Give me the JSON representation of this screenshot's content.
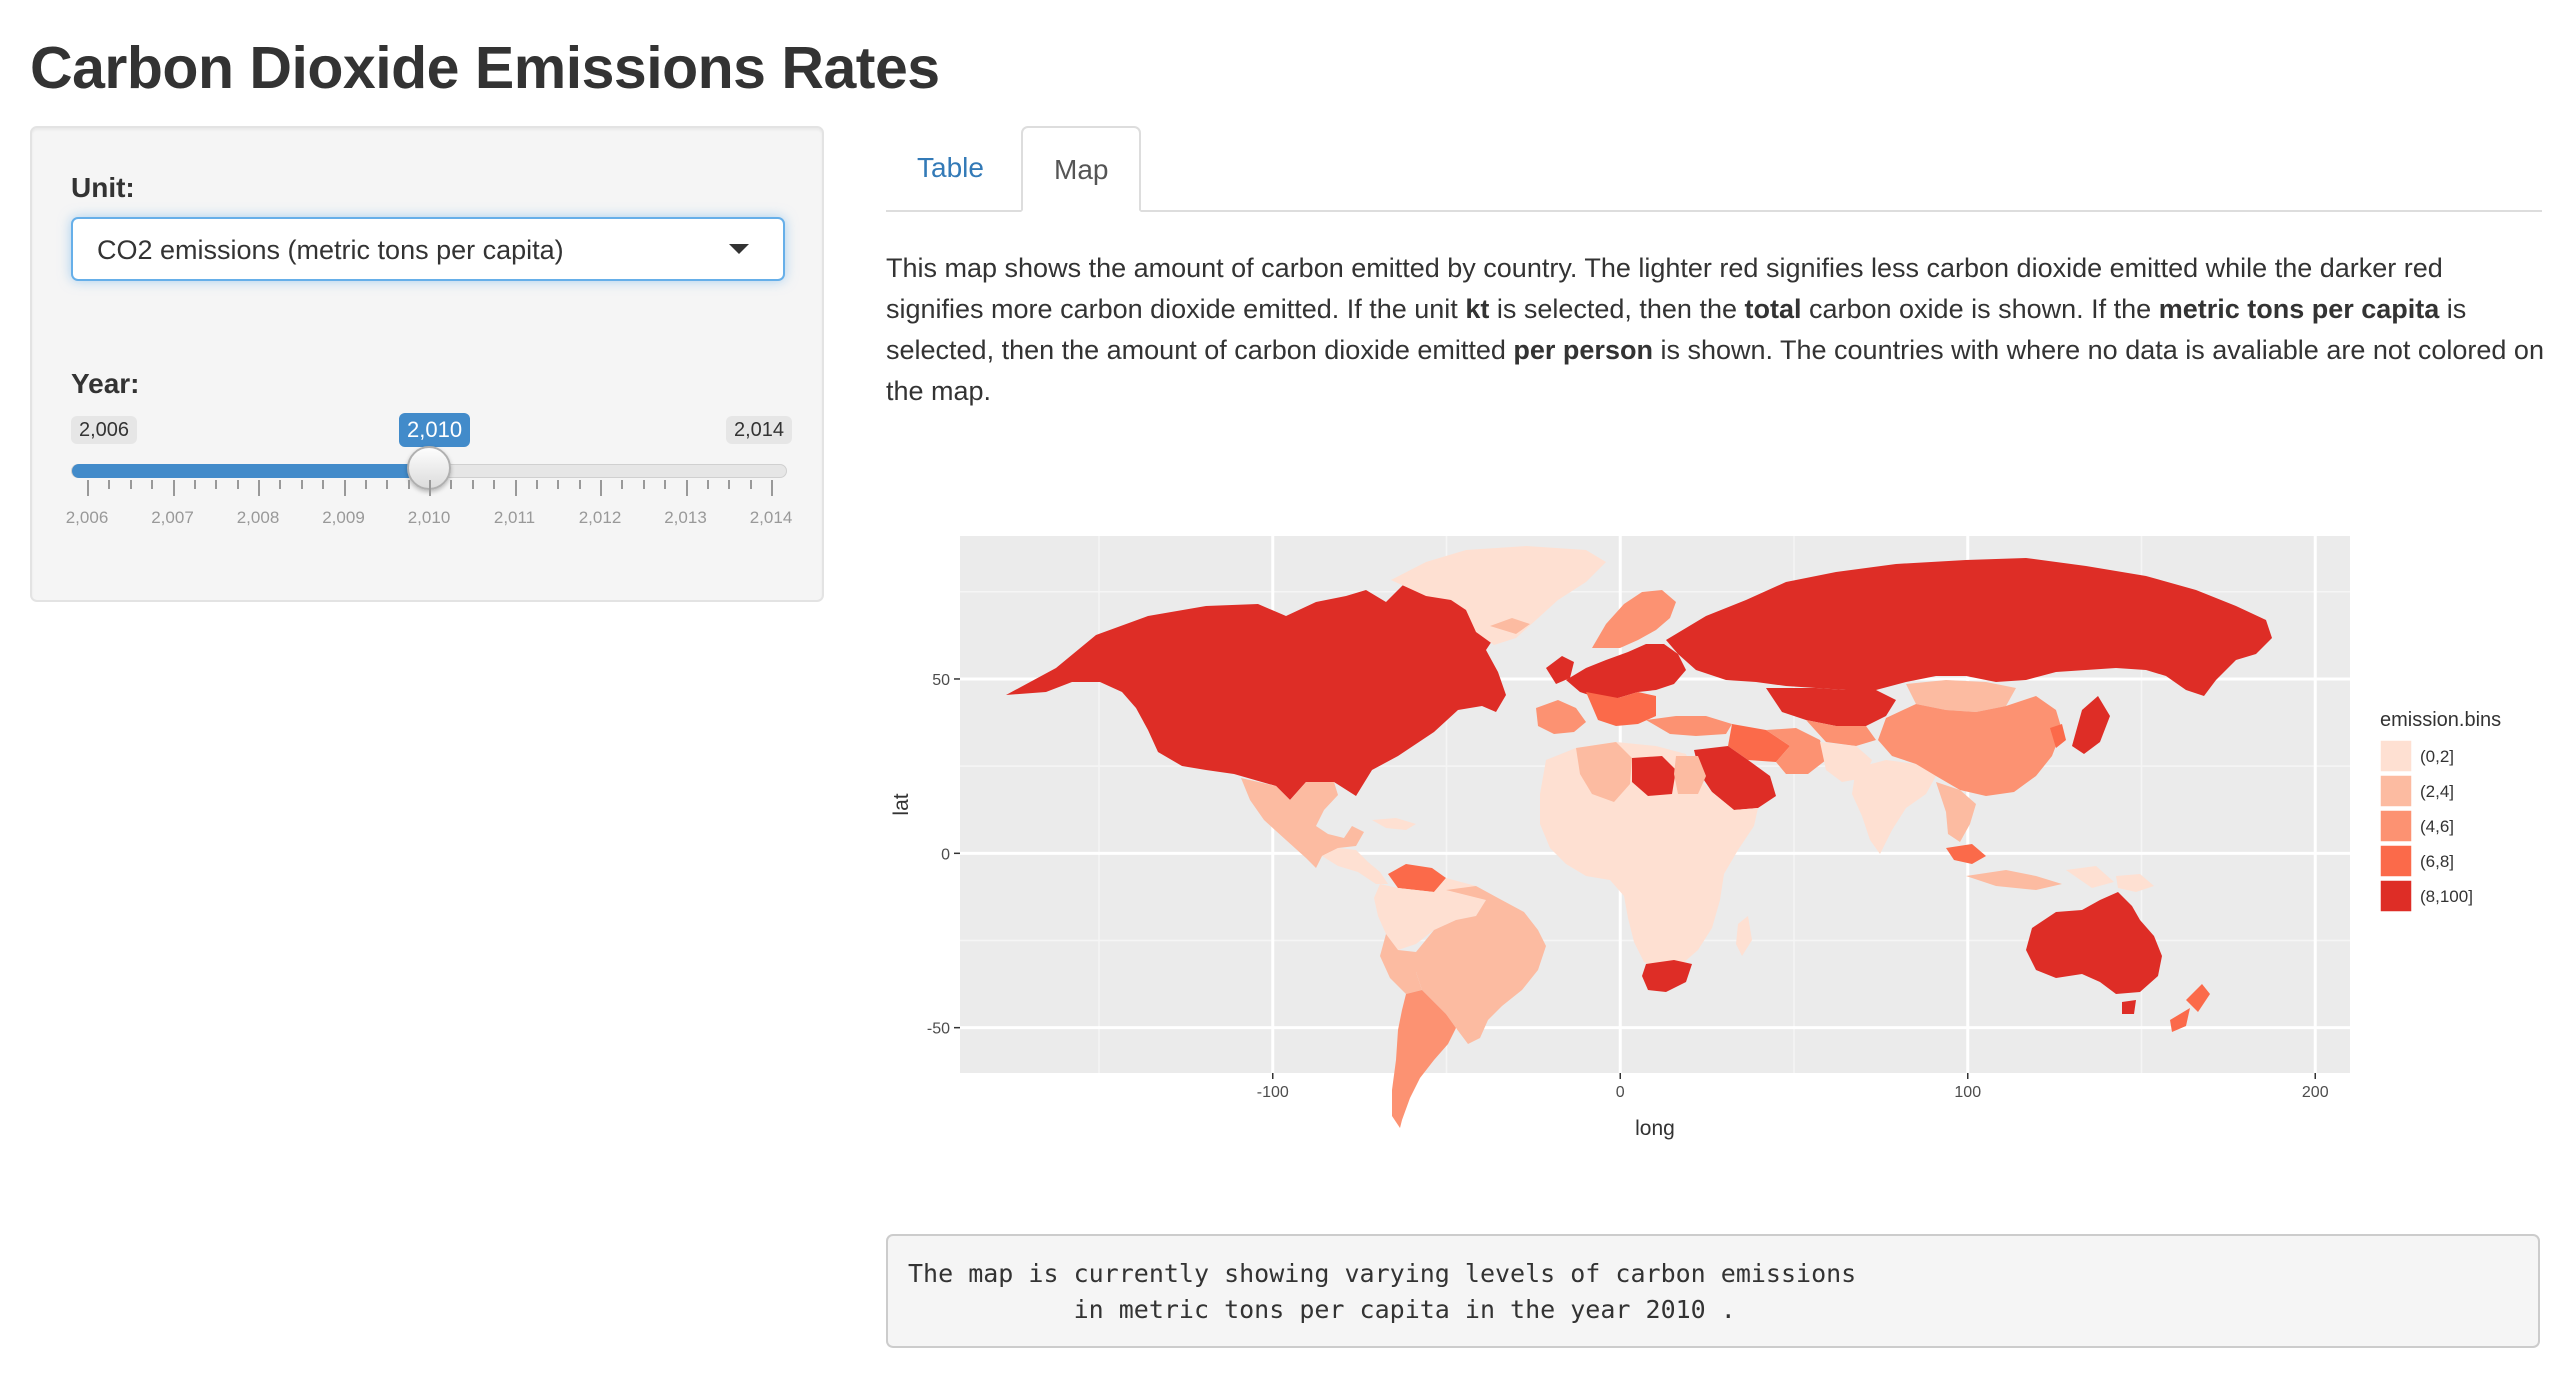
{
  "app": {
    "title": "Carbon Dioxide Emissions Rates"
  },
  "sidebar": {
    "unit_label": "Unit:",
    "unit_selected": "CO2 emissions (metric tons per capita)",
    "year_label": "Year:",
    "year_slider": {
      "min": 2006,
      "max": 2014,
      "value": 2010,
      "min_label": "2,006",
      "max_label": "2,014",
      "value_label": "2,010",
      "tick_labels": [
        "2,006",
        "2,007",
        "2,008",
        "2,009",
        "2,010",
        "2,011",
        "2,012",
        "2,013",
        "2,014"
      ]
    }
  },
  "tabs": [
    {
      "label": "Table",
      "active": false
    },
    {
      "label": "Map",
      "active": true
    }
  ],
  "description": {
    "p1": "This map shows the amount of carbon emitted by country. The lighter red signifies less carbon dioxide emitted while the darker red signifies more carbon dioxide emitted. If the unit ",
    "b1": "kt",
    "p2": " is selected, then the ",
    "b2": "total",
    "p3": " carbon oxide is shown. If the ",
    "b3": "metric tons per capita",
    "p4": " is selected, then the amount of carbon dioxide emitted ",
    "b4": "per person",
    "p5": " is shown. The countries with where no data is avaliable are not colored on the map."
  },
  "chart_data": {
    "type": "choropleth map",
    "xlabel": "long",
    "ylabel": "lat",
    "xlim": [
      -190,
      210
    ],
    "ylim": [
      -63,
      91
    ],
    "x_ticks": [
      -100,
      0,
      100,
      200
    ],
    "y_ticks": [
      -50,
      0,
      50
    ],
    "grid": true,
    "legend": {
      "title": "emission.bins",
      "placement": "right",
      "entries": [
        {
          "label": "(0,2]",
          "color": "#fee0d2"
        },
        {
          "label": "(2,4]",
          "color": "#fcbba1"
        },
        {
          "label": "(4,6]",
          "color": "#fc9272"
        },
        {
          "label": "(6,8]",
          "color": "#fb6a4a"
        },
        {
          "label": "(8,100]",
          "color": "#de2d26"
        }
      ]
    }
  },
  "output": {
    "line1": "The map is currently showing varying levels of carbon emissions",
    "line2": "           in metric tons per capita in the year 2010 ."
  },
  "colors": {
    "accent": "#428bca",
    "link": "#337ab7",
    "panel_bg": "#ebebeb"
  }
}
